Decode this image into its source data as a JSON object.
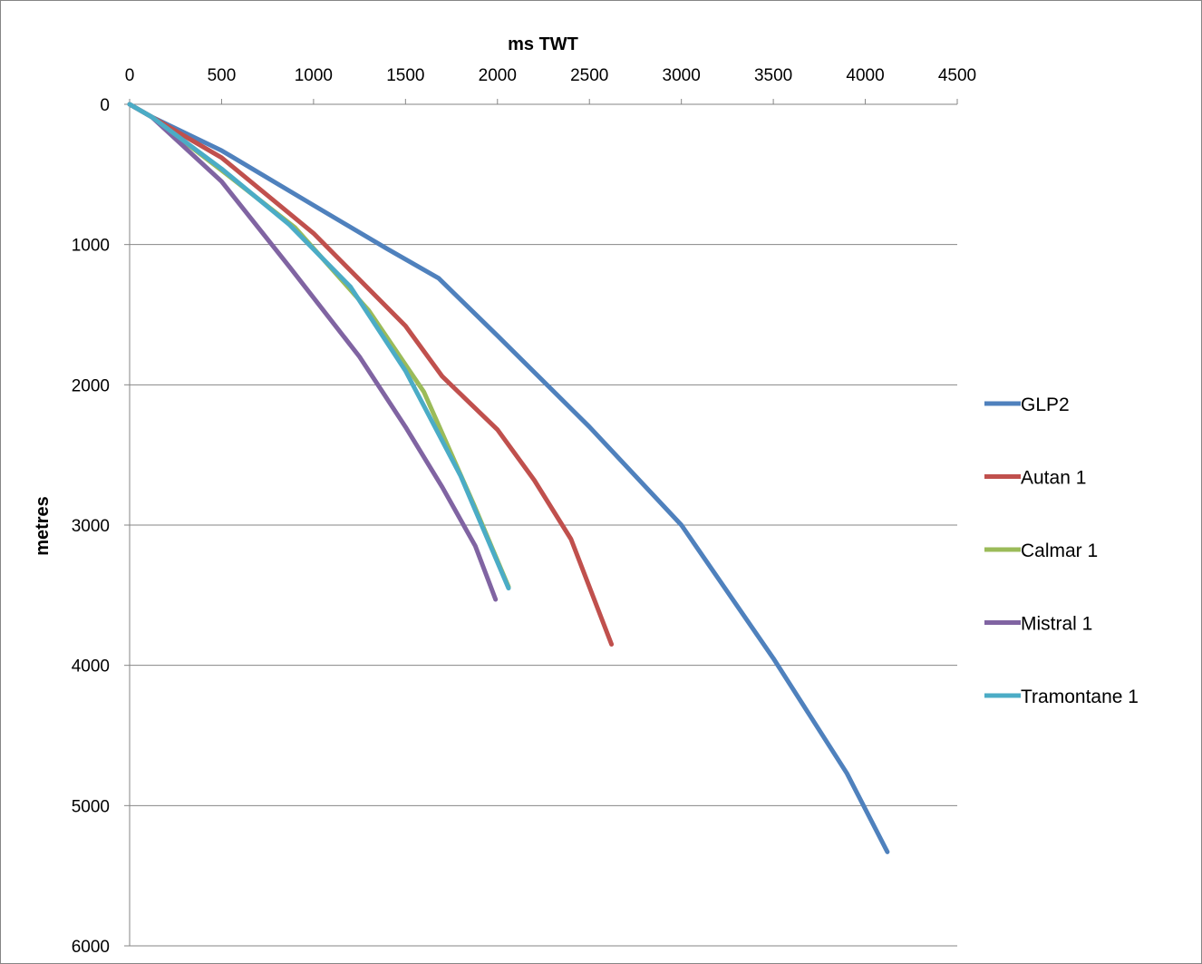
{
  "chart_data": {
    "type": "line",
    "title": "",
    "xlabel": "ms TWT",
    "ylabel": "metres",
    "xlim": [
      0,
      4500
    ],
    "ylim": [
      0,
      6000
    ],
    "y_inverted": true,
    "x_axis_position": "top",
    "xticks": [
      0,
      500,
      1000,
      1500,
      2000,
      2500,
      3000,
      3500,
      4000,
      4500
    ],
    "yticks": [
      0,
      1000,
      2000,
      3000,
      4000,
      5000,
      6000
    ],
    "grid": "horizontal",
    "legend_position": "right",
    "series": [
      {
        "name": "GLP2",
        "color": "#4F81BD",
        "points": [
          [
            0,
            0
          ],
          [
            120,
            90
          ],
          [
            500,
            330
          ],
          [
            1000,
            720
          ],
          [
            1400,
            1030
          ],
          [
            1680,
            1240
          ],
          [
            2000,
            1650
          ],
          [
            2500,
            2300
          ],
          [
            3000,
            3000
          ],
          [
            3500,
            3950
          ],
          [
            3900,
            4770
          ],
          [
            4120,
            5330
          ]
        ]
      },
      {
        "name": "Autan 1",
        "color": "#C0504D",
        "points": [
          [
            0,
            0
          ],
          [
            120,
            90
          ],
          [
            500,
            380
          ],
          [
            1000,
            920
          ],
          [
            1500,
            1580
          ],
          [
            1700,
            1940
          ],
          [
            2000,
            2320
          ],
          [
            2200,
            2680
          ],
          [
            2400,
            3100
          ],
          [
            2620,
            3850
          ]
        ]
      },
      {
        "name": "Calmar 1",
        "color": "#9BBB59",
        "points": [
          [
            0,
            0
          ],
          [
            120,
            90
          ],
          [
            500,
            470
          ],
          [
            900,
            880
          ],
          [
            1300,
            1470
          ],
          [
            1600,
            2050
          ],
          [
            1870,
            2850
          ],
          [
            2060,
            3440
          ]
        ]
      },
      {
        "name": "Mistral 1",
        "color": "#8064A2",
        "points": [
          [
            0,
            0
          ],
          [
            120,
            90
          ],
          [
            500,
            550
          ],
          [
            870,
            1160
          ],
          [
            1250,
            1800
          ],
          [
            1500,
            2300
          ],
          [
            1700,
            2730
          ],
          [
            1880,
            3150
          ],
          [
            1990,
            3530
          ]
        ]
      },
      {
        "name": "Tramontane 1",
        "color": "#4BACC6",
        "points": [
          [
            0,
            0
          ],
          [
            120,
            90
          ],
          [
            500,
            460
          ],
          [
            870,
            860
          ],
          [
            1200,
            1300
          ],
          [
            1500,
            1900
          ],
          [
            1800,
            2650
          ],
          [
            2060,
            3450
          ]
        ]
      }
    ]
  }
}
